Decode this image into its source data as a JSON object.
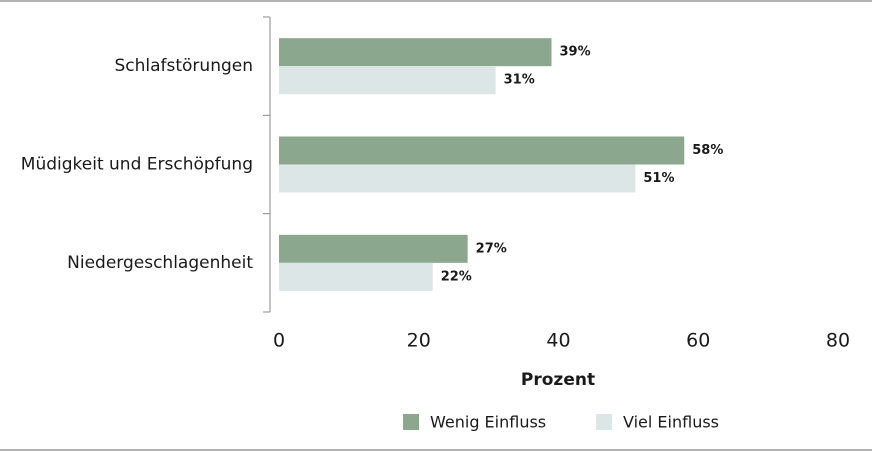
{
  "chart_data": {
    "type": "hbar",
    "categories": [
      "Schlafstörungen",
      "Müdigkeit und Erschöpfung",
      "Niedergeschlagenheit"
    ],
    "series": [
      {
        "name": "Wenig Einfluss",
        "color": "#8ba88e",
        "values": [
          39,
          58,
          27
        ],
        "value_labels": [
          "39%",
          "58%",
          "27%"
        ]
      },
      {
        "name": "Viel Einfluss",
        "color": "#dde6e6",
        "values": [
          31,
          51,
          22
        ],
        "value_labels": [
          "31%",
          "51%",
          "22%"
        ]
      }
    ],
    "x_label": "Prozent",
    "xlim": [
      0,
      80
    ],
    "xticks": [
      0,
      20,
      40,
      60,
      80
    ],
    "legend": "bottom"
  }
}
